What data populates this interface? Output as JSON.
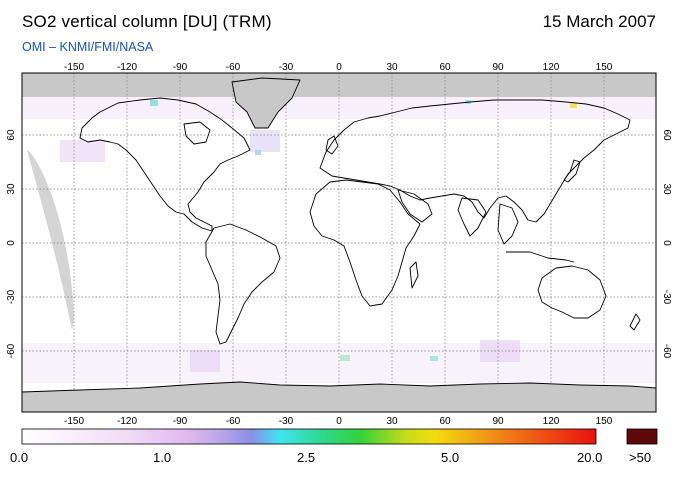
{
  "header": {
    "title": "SO2 vertical column [DU] (TRM)",
    "date": "15 March 2007",
    "credit": "OMI  –  KNMI/FMI/NASA"
  },
  "axes": {
    "longitude_ticks": [
      "-150",
      "-120",
      "-90",
      "-60",
      "-30",
      "0",
      "30",
      "60",
      "90",
      "120",
      "150"
    ],
    "latitude_ticks": [
      "60",
      "30",
      "0",
      "-30",
      "-60"
    ]
  },
  "colorbar": {
    "labels": [
      "0.0",
      "1.0",
      "2.5",
      "5.0",
      "20.0",
      ">50"
    ],
    "colors": {
      "start": "#ffffff",
      "lilac": "#e9c8f2",
      "violet": "#9a8ee6",
      "cyan": "#3fe5f0",
      "green": "#33d23a",
      "yellow": "#f3dc10",
      "orange": "#f07f18",
      "red": "#ea1010",
      "overflow": "#5e0808"
    }
  },
  "colors": {
    "land_outline": "#000000",
    "no_data": "#c8c8c8",
    "credit_text": "#1a55a8",
    "grid": "#7a7a7a"
  }
}
